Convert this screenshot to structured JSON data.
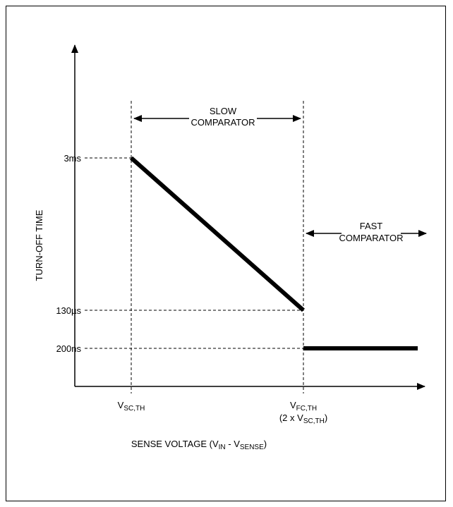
{
  "chart_data": {
    "type": "line",
    "title": "",
    "xlabel": {
      "parts": [
        {
          "t": "SENSE VOLTAGE (V"
        },
        {
          "t": "IN",
          "sub": true
        },
        {
          "t": " - V"
        },
        {
          "t": "SENSE",
          "sub": true
        },
        {
          "t": ")"
        }
      ]
    },
    "ylabel": "TURN-OFF TIME",
    "y_ticks": [
      "3ms",
      "130µs",
      "200ns"
    ],
    "x_ticks": [
      {
        "id": "vsc",
        "parts": [
          {
            "t": "V"
          },
          {
            "t": "SC,TH",
            "sub": true
          }
        ]
      },
      {
        "id": "vfc",
        "parts": [
          {
            "t": "V"
          },
          {
            "t": "FC,TH",
            "sub": true
          }
        ]
      },
      {
        "id": "vfc2",
        "parts": [
          {
            "t": "(2 x V"
          },
          {
            "t": "SC,TH",
            "sub": true
          },
          {
            "t": ")"
          }
        ]
      }
    ],
    "x_categories": [
      "V_SC,TH",
      "V_FC,TH"
    ],
    "y_levels": [
      "3ms",
      "130µs",
      "200ns"
    ],
    "series": [
      {
        "points": [
          [
            "V_SC,TH",
            "3ms"
          ],
          [
            "V_FC,TH",
            "130µs"
          ]
        ]
      },
      {
        "points": [
          [
            "V_FC,TH",
            "200ns"
          ],
          [
            "end",
            "200ns"
          ]
        ]
      }
    ],
    "annotations": [
      {
        "id": "slow",
        "lines": [
          "SLOW",
          "COMPARATOR"
        ]
      },
      {
        "id": "fast",
        "lines": [
          "FAST",
          "COMPARATOR"
        ]
      }
    ],
    "grid": false,
    "colors": {
      "line": "#000000",
      "background": "#ffffff"
    }
  }
}
